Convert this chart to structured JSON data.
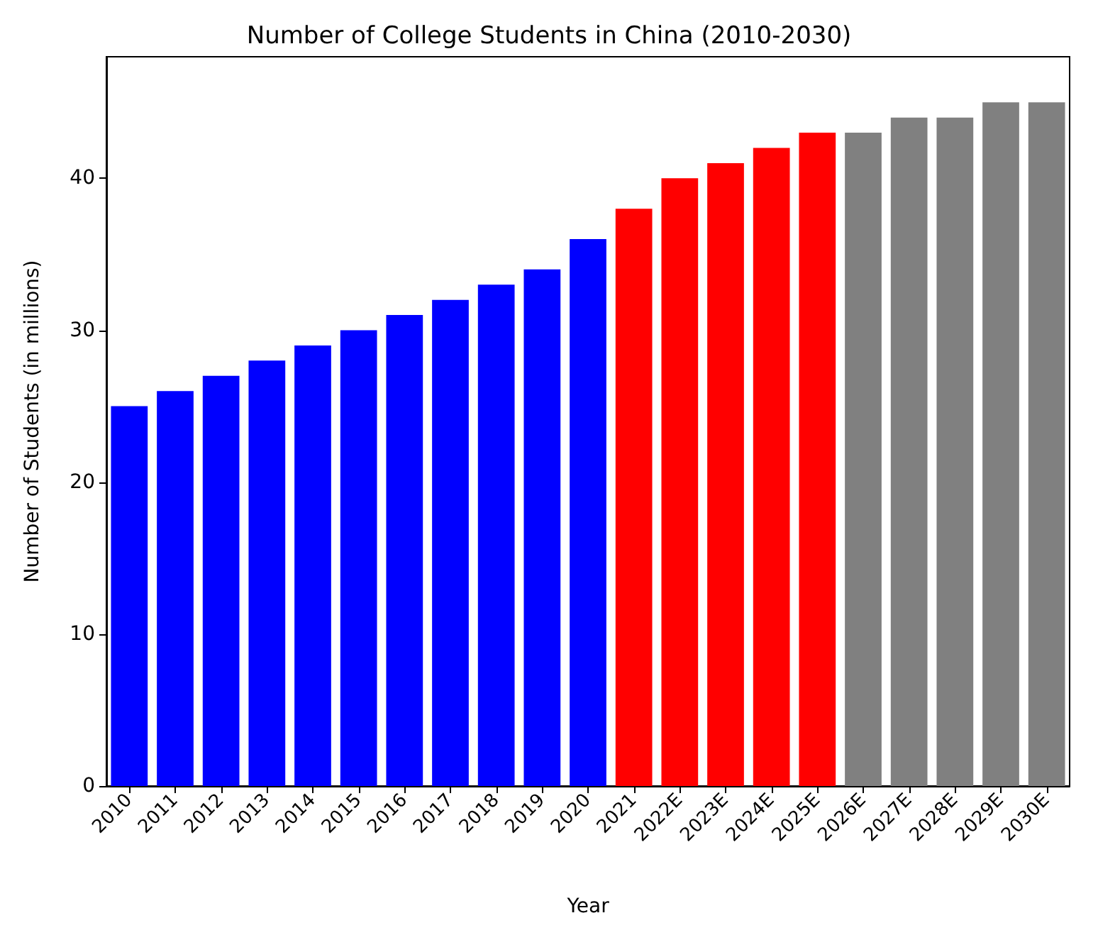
{
  "chart_data": {
    "type": "bar",
    "title": "Number of College Students in China (2010-2030)",
    "xlabel": "Year",
    "ylabel": "Number of Students (in millions)",
    "categories": [
      "2010",
      "2011",
      "2012",
      "2013",
      "2014",
      "2015",
      "2016",
      "2017",
      "2018",
      "2019",
      "2020",
      "2021",
      "2022E",
      "2023E",
      "2024E",
      "2025E",
      "2026E",
      "2027E",
      "2028E",
      "2029E",
      "2030E"
    ],
    "values": [
      25,
      26,
      27,
      28,
      29,
      30,
      31,
      32,
      33,
      34,
      36,
      38,
      40,
      41,
      42,
      43,
      43,
      44,
      44,
      45,
      45
    ],
    "colors": [
      "#0000ff",
      "#0000ff",
      "#0000ff",
      "#0000ff",
      "#0000ff",
      "#0000ff",
      "#0000ff",
      "#0000ff",
      "#0000ff",
      "#0000ff",
      "#0000ff",
      "#ff0000",
      "#ff0000",
      "#ff0000",
      "#ff0000",
      "#ff0000",
      "#808080",
      "#808080",
      "#808080",
      "#808080",
      "#808080"
    ],
    "ylim": [
      0,
      48
    ],
    "yticks": [
      0,
      10,
      20,
      30,
      40
    ],
    "grid": false
  }
}
